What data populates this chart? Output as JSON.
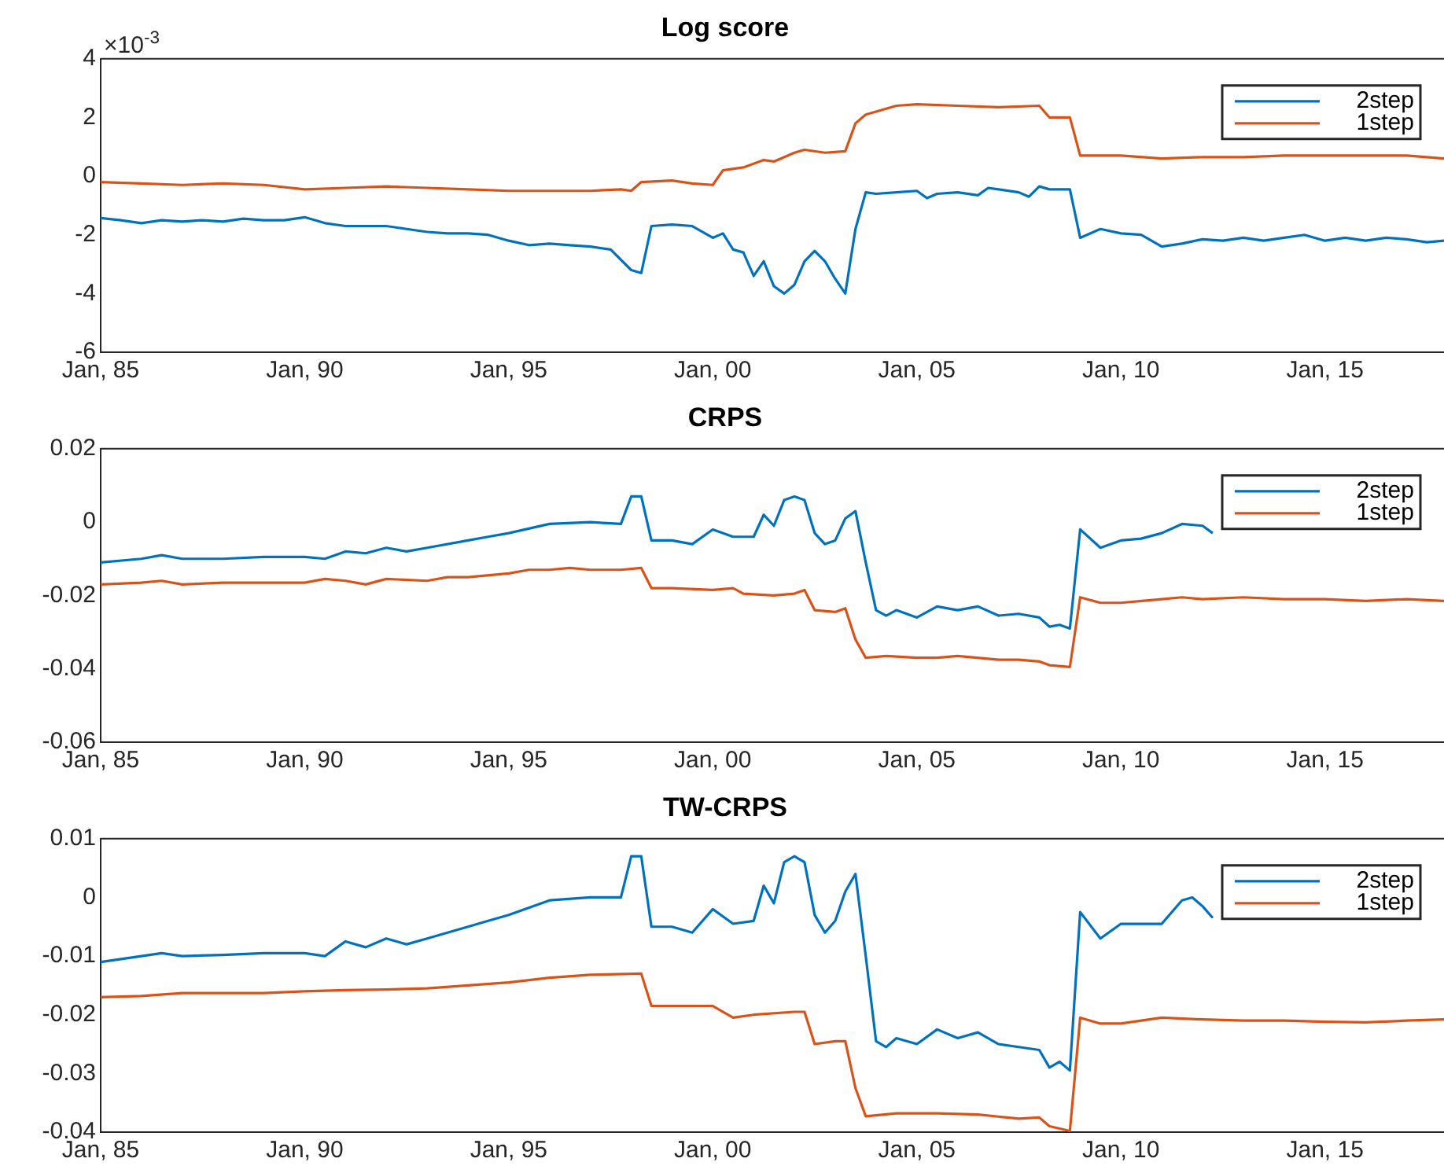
{
  "chart_data": [
    {
      "type": "line",
      "title": "Log score",
      "annotations": [
        "×10$^{-3}$"
      ],
      "xlim": [
        "1985-01",
        "2017-12"
      ],
      "xticks": [
        {
          "value": "1985-01",
          "label": "Jan, 85"
        },
        {
          "value": "1990-01",
          "label": "Jan, 90"
        },
        {
          "value": "1995-01",
          "label": "Jan, 95"
        },
        {
          "value": "2000-01",
          "label": "Jan, 00"
        },
        {
          "value": "2005-01",
          "label": "Jan, 05"
        },
        {
          "value": "2010-01",
          "label": "Jan, 10"
        },
        {
          "value": "2015-01",
          "label": "Jan, 15"
        }
      ],
      "ylim": [
        -6,
        4
      ],
      "yticks": [
        -6,
        -4,
        -2,
        0,
        2,
        4
      ],
      "grid": false,
      "legend": "top right",
      "marker": "none",
      "line_style": "solid",
      "series": [
        {
          "name": "2step",
          "color": "#0072bd",
          "x": [
            "1985-01",
            "1985-07",
            "1986-01",
            "1986-07",
            "1987-01",
            "1987-07",
            "1988-01",
            "1988-07",
            "1989-01",
            "1989-07",
            "1990-01",
            "1990-07",
            "1991-01",
            "1991-07",
            "1992-01",
            "1992-07",
            "1993-01",
            "1993-07",
            "1994-01",
            "1994-07",
            "1995-01",
            "1995-07",
            "1996-01",
            "1996-07",
            "1997-01",
            "1997-07",
            "1998-01",
            "1998-04",
            "1998-07",
            "1999-01",
            "1999-07",
            "2000-01",
            "2000-04",
            "2000-07",
            "2000-10",
            "2001-01",
            "2001-04",
            "2001-07",
            "2001-10",
            "2002-01",
            "2002-04",
            "2002-07",
            "2002-10",
            "2003-01",
            "2003-04",
            "2003-07",
            "2003-10",
            "2004-01",
            "2004-07",
            "2005-01",
            "2005-04",
            "2005-07",
            "2006-01",
            "2006-07",
            "2006-10",
            "2007-01",
            "2007-07",
            "2007-10",
            "2008-01",
            "2008-04",
            "2008-10",
            "2009-01",
            "2009-07",
            "2010-01",
            "2010-07",
            "2011-01",
            "2011-07",
            "2012-01",
            "2012-07",
            "2013-01",
            "2013-07",
            "2014-01",
            "2014-07",
            "2015-01",
            "2015-07",
            "2016-01",
            "2016-07",
            "2017-01",
            "2017-07",
            "2017-12"
          ],
          "values": [
            -1.43,
            -1.5,
            -1.6,
            -1.5,
            -1.55,
            -1.5,
            -1.55,
            -1.45,
            -1.5,
            -1.5,
            -1.4,
            -1.6,
            -1.7,
            -1.7,
            -1.7,
            -1.8,
            -1.9,
            -1.95,
            -1.95,
            -2.0,
            -2.2,
            -2.35,
            -2.3,
            -2.35,
            -2.4,
            -2.5,
            -3.2,
            -3.3,
            -1.7,
            -1.65,
            -1.7,
            -2.1,
            -1.95,
            -2.5,
            -2.6,
            -3.4,
            -2.9,
            -3.75,
            -4.0,
            -3.7,
            -2.9,
            -2.55,
            -2.9,
            -3.5,
            -4.0,
            -1.8,
            -0.55,
            -0.6,
            -0.55,
            -0.5,
            -0.75,
            -0.6,
            -0.55,
            -0.65,
            -0.4,
            -0.45,
            -0.55,
            -0.7,
            -0.35,
            -0.45,
            -0.45,
            -2.1,
            -1.8,
            -1.95,
            -2.0,
            -2.4,
            -2.3,
            -2.15,
            -2.2,
            -2.1,
            -2.2,
            -2.1,
            -2.0,
            -2.2,
            -2.1,
            -2.2,
            -2.1,
            -2.15,
            -2.25,
            -2.2
          ]
        },
        {
          "name": "1step",
          "color": "#d95319",
          "x": [
            "1985-01",
            "1986-01",
            "1987-01",
            "1988-01",
            "1989-01",
            "1990-01",
            "1991-01",
            "1992-01",
            "1993-01",
            "1994-01",
            "1995-01",
            "1996-01",
            "1997-01",
            "1997-10",
            "1998-01",
            "1998-04",
            "1999-01",
            "1999-07",
            "2000-01",
            "2000-04",
            "2000-10",
            "2001-04",
            "2001-07",
            "2002-01",
            "2002-04",
            "2002-10",
            "2003-04",
            "2003-07",
            "2003-10",
            "2004-07",
            "2005-01",
            "2006-01",
            "2007-01",
            "2008-01",
            "2008-04",
            "2008-10",
            "2009-01",
            "2010-01",
            "2011-01",
            "2012-01",
            "2013-01",
            "2014-01",
            "2015-01",
            "2016-01",
            "2017-01",
            "2017-12"
          ],
          "values": [
            -0.2,
            -0.25,
            -0.3,
            -0.25,
            -0.3,
            -0.45,
            -0.4,
            -0.35,
            -0.4,
            -0.45,
            -0.5,
            -0.5,
            -0.5,
            -0.45,
            -0.5,
            -0.2,
            -0.15,
            -0.25,
            -0.3,
            0.2,
            0.3,
            0.55,
            0.5,
            0.8,
            0.9,
            0.8,
            0.85,
            1.8,
            2.1,
            2.4,
            2.45,
            2.4,
            2.35,
            2.4,
            2.0,
            2.0,
            0.7,
            0.7,
            0.6,
            0.65,
            0.65,
            0.7,
            0.7,
            0.7,
            0.7,
            0.6
          ]
        }
      ]
    },
    {
      "type": "line",
      "title": "CRPS",
      "xlim": [
        "1985-01",
        "2017-12"
      ],
      "xticks": [
        {
          "value": "1985-01",
          "label": "Jan, 85"
        },
        {
          "value": "1990-01",
          "label": "Jan, 90"
        },
        {
          "value": "1995-01",
          "label": "Jan, 95"
        },
        {
          "value": "2000-01",
          "label": "Jan, 00"
        },
        {
          "value": "2005-01",
          "label": "Jan, 05"
        },
        {
          "value": "2010-01",
          "label": "Jan, 10"
        },
        {
          "value": "2015-01",
          "label": "Jan, 15"
        }
      ],
      "ylim": [
        -0.06,
        0.02
      ],
      "yticks": [
        -0.06,
        -0.04,
        -0.02,
        0,
        0.02
      ],
      "grid": false,
      "legend": "top right",
      "marker": "none",
      "line_style": "solid",
      "series": [
        {
          "name": "2step",
          "color": "#0072bd",
          "x": [
            "1985-01",
            "1986-01",
            "1986-07",
            "1987-01",
            "1988-01",
            "1989-01",
            "1990-01",
            "1990-07",
            "1991-01",
            "1991-07",
            "1992-01",
            "1992-07",
            "1993-01",
            "1994-01",
            "1994-07",
            "1995-01",
            "1996-01",
            "1997-01",
            "1997-10",
            "1998-01",
            "1998-04",
            "1998-07",
            "1999-01",
            "1999-07",
            "2000-01",
            "2000-07",
            "2001-01",
            "2001-04",
            "2001-07",
            "2001-10",
            "2002-01",
            "2002-04",
            "2002-07",
            "2002-10",
            "2003-01",
            "2003-04",
            "2003-07",
            "2003-10",
            "2004-01",
            "2004-04",
            "2004-07",
            "2005-01",
            "2005-07",
            "2006-01",
            "2006-07",
            "2007-01",
            "2007-07",
            "2008-01",
            "2008-04",
            "2008-07",
            "2008-10",
            "2009-01",
            "2009-07",
            "2010-01",
            "2010-07",
            "2011-01",
            "2011-07",
            "2012-01",
            "2012-04"
          ],
          "values": [
            -0.011,
            -0.01,
            -0.009,
            -0.01,
            -0.01,
            -0.0095,
            -0.0095,
            -0.01,
            -0.008,
            -0.0085,
            -0.007,
            -0.008,
            -0.007,
            -0.005,
            -0.004,
            -0.003,
            -0.0005,
            0,
            -0.0005,
            0.007,
            0.007,
            -0.005,
            -0.005,
            -0.006,
            -0.002,
            -0.004,
            -0.004,
            0.002,
            -0.001,
            0.006,
            0.007,
            0.006,
            -0.003,
            -0.006,
            -0.005,
            0.001,
            0.003,
            -0.011,
            -0.024,
            -0.0255,
            -0.024,
            -0.026,
            -0.023,
            -0.024,
            -0.023,
            -0.0255,
            -0.025,
            -0.026,
            -0.0285,
            -0.028,
            -0.029,
            -0.002,
            -0.007,
            -0.005,
            -0.0045,
            -0.003,
            -0.0005,
            -0.001,
            -0.003
          ]
        },
        {
          "name": "1step",
          "color": "#d95319",
          "x": [
            "1985-01",
            "1986-01",
            "1986-07",
            "1987-01",
            "1988-01",
            "1989-01",
            "1990-01",
            "1990-07",
            "1991-01",
            "1991-07",
            "1992-01",
            "1993-01",
            "1993-07",
            "1994-01",
            "1995-01",
            "1995-07",
            "1996-01",
            "1996-07",
            "1997-01",
            "1997-10",
            "1998-04",
            "1998-07",
            "1999-01",
            "2000-01",
            "2000-07",
            "2000-10",
            "2001-07",
            "2002-01",
            "2002-04",
            "2002-07",
            "2003-01",
            "2003-04",
            "2003-07",
            "2003-10",
            "2004-04",
            "2005-01",
            "2005-07",
            "2006-01",
            "2007-01",
            "2007-07",
            "2008-01",
            "2008-04",
            "2008-10",
            "2009-01",
            "2009-07",
            "2010-01",
            "2011-01",
            "2011-07",
            "2012-01",
            "2013-01",
            "2014-01",
            "2015-01",
            "2016-01",
            "2017-01",
            "2017-12"
          ],
          "values": [
            -0.017,
            -0.0165,
            -0.016,
            -0.017,
            -0.0165,
            -0.0165,
            -0.0165,
            -0.0155,
            -0.016,
            -0.017,
            -0.0155,
            -0.016,
            -0.015,
            -0.015,
            -0.014,
            -0.013,
            -0.013,
            -0.0125,
            -0.013,
            -0.013,
            -0.0125,
            -0.018,
            -0.018,
            -0.0185,
            -0.018,
            -0.0195,
            -0.02,
            -0.0195,
            -0.0185,
            -0.024,
            -0.0245,
            -0.0235,
            -0.032,
            -0.037,
            -0.0365,
            -0.037,
            -0.037,
            -0.0365,
            -0.0375,
            -0.0375,
            -0.038,
            -0.039,
            -0.0395,
            -0.0205,
            -0.022,
            -0.022,
            -0.021,
            -0.0205,
            -0.021,
            -0.0205,
            -0.021,
            -0.021,
            -0.0215,
            -0.021,
            -0.0215
          ]
        }
      ]
    },
    {
      "type": "line",
      "title": "TW-CRPS",
      "xlim": [
        "1985-01",
        "2017-12"
      ],
      "xticks": [
        {
          "value": "1985-01",
          "label": "Jan, 85"
        },
        {
          "value": "1990-01",
          "label": "Jan, 90"
        },
        {
          "value": "1995-01",
          "label": "Jan, 95"
        },
        {
          "value": "2000-01",
          "label": "Jan, 00"
        },
        {
          "value": "2005-01",
          "label": "Jan, 05"
        },
        {
          "value": "2010-01",
          "label": "Jan, 10"
        },
        {
          "value": "2015-01",
          "label": "Jan, 15"
        }
      ],
      "ylim": [
        -0.04,
        0.01
      ],
      "yticks": [
        -0.04,
        -0.03,
        -0.02,
        -0.01,
        0,
        0.01
      ],
      "grid": false,
      "legend": "top right",
      "marker": "none",
      "line_style": "solid",
      "series": [
        {
          "name": "2step",
          "color": "#0072bd",
          "x": [
            "1985-01",
            "1986-01",
            "1986-07",
            "1987-01",
            "1988-01",
            "1989-01",
            "1990-01",
            "1990-07",
            "1991-01",
            "1991-07",
            "1992-01",
            "1992-07",
            "1993-01",
            "1994-01",
            "1994-07",
            "1995-01",
            "1996-01",
            "1997-01",
            "1997-10",
            "1998-01",
            "1998-04",
            "1998-07",
            "1999-01",
            "1999-07",
            "2000-01",
            "2000-07",
            "2001-01",
            "2001-04",
            "2001-07",
            "2001-10",
            "2002-01",
            "2002-04",
            "2002-07",
            "2002-10",
            "2003-01",
            "2003-04",
            "2003-07",
            "2003-10",
            "2004-01",
            "2004-04",
            "2004-07",
            "2005-01",
            "2005-07",
            "2006-01",
            "2006-07",
            "2007-01",
            "2007-07",
            "2008-01",
            "2008-04",
            "2008-07",
            "2008-10",
            "2009-01",
            "2009-07",
            "2010-01",
            "2011-01",
            "2011-07",
            "2011-10",
            "2012-01",
            "2012-04"
          ],
          "values": [
            -0.011,
            -0.01,
            -0.0095,
            -0.01,
            -0.0098,
            -0.0095,
            -0.0095,
            -0.01,
            -0.0075,
            -0.0085,
            -0.007,
            -0.008,
            -0.007,
            -0.005,
            -0.004,
            -0.003,
            -0.0005,
            0,
            0,
            0.007,
            0.007,
            -0.005,
            -0.005,
            -0.006,
            -0.002,
            -0.0045,
            -0.004,
            0.002,
            -0.001,
            0.006,
            0.007,
            0.006,
            -0.003,
            -0.006,
            -0.004,
            0.001,
            0.004,
            -0.01,
            -0.0245,
            -0.0255,
            -0.024,
            -0.025,
            -0.0225,
            -0.024,
            -0.023,
            -0.025,
            -0.0255,
            -0.026,
            -0.029,
            -0.028,
            -0.0295,
            -0.0025,
            -0.007,
            -0.0045,
            -0.0045,
            -0.0005,
            0,
            -0.0015,
            -0.0035
          ]
        },
        {
          "name": "1step",
          "color": "#d95319",
          "x": [
            "1985-01",
            "1986-01",
            "1987-01",
            "1988-01",
            "1989-01",
            "1990-01",
            "1991-01",
            "1992-01",
            "1993-01",
            "1994-01",
            "1995-01",
            "1996-01",
            "1997-01",
            "1998-04",
            "1998-07",
            "1999-01",
            "2000-01",
            "2000-07",
            "2001-01",
            "2002-01",
            "2002-04",
            "2002-07",
            "2003-01",
            "2003-04",
            "2003-07",
            "2003-10",
            "2004-07",
            "2005-07",
            "2006-07",
            "2007-07",
            "2008-01",
            "2008-04",
            "2008-10",
            "2009-01",
            "2009-07",
            "2010-01",
            "2011-01",
            "2012-01",
            "2013-01",
            "2014-01",
            "2015-01",
            "2016-01",
            "2017-01",
            "2017-12"
          ],
          "values": [
            -0.017,
            -0.0168,
            -0.0163,
            -0.0163,
            -0.0163,
            -0.016,
            -0.0158,
            -0.0157,
            -0.0155,
            -0.015,
            -0.0145,
            -0.0137,
            -0.0132,
            -0.013,
            -0.0185,
            -0.0185,
            -0.0185,
            -0.0205,
            -0.02,
            -0.0195,
            -0.0195,
            -0.025,
            -0.0245,
            -0.0245,
            -0.0325,
            -0.0373,
            -0.0368,
            -0.0368,
            -0.037,
            -0.0377,
            -0.0375,
            -0.039,
            -0.0398,
            -0.0205,
            -0.0215,
            -0.0215,
            -0.0205,
            -0.0208,
            -0.021,
            -0.021,
            -0.0212,
            -0.0213,
            -0.021,
            -0.0208
          ]
        }
      ]
    }
  ]
}
